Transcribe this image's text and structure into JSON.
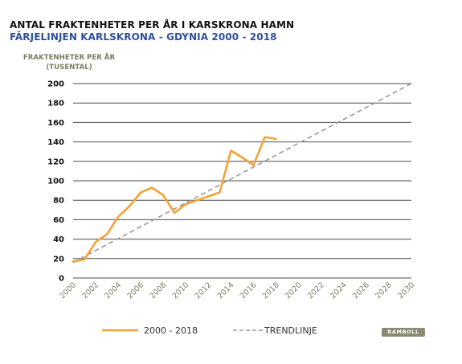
{
  "colors": {
    "series": "#f5a236",
    "trend": "#9a9a9a",
    "subtitle": "#2f4f9c",
    "axis_text": "#7d7d62",
    "grid": "#4d4d4d",
    "logo_bg": "#8a8a72"
  },
  "logo_text": "RAMBOLL",
  "chart_data": {
    "type": "line",
    "title": "ANTAL FRAKTENHETER PER ÅR I KARSKRONA HAMN",
    "subtitle": "FÄRJELINJEN KARLSKRONA - GDYNIA 2000 - 2018",
    "ylabel": [
      "FRAKTENHETER PER ÅR",
      "(TUSENTAL)"
    ],
    "xlabel": "",
    "xlim": [
      2000,
      2030
    ],
    "ylim": [
      0,
      200
    ],
    "x_ticks": [
      "2000",
      "2002",
      "2004",
      "2006",
      "2008",
      "2010",
      "2012",
      "2014",
      "2016",
      "2018",
      "2020",
      "2022",
      "2024",
      "2026",
      "2028",
      "2030"
    ],
    "y_ticks": [
      "0",
      "20",
      "40",
      "60",
      "80",
      "100",
      "120",
      "140",
      "160",
      "180",
      "200"
    ],
    "grid": "horizontal",
    "legend_position": "bottom",
    "series": [
      {
        "name": "2000 - 2018",
        "style": "solid",
        "x": [
          2000,
          2001,
          2002,
          2003,
          2004,
          2005,
          2006,
          2007,
          2008,
          2009,
          2010,
          2011,
          2012,
          2013,
          2014,
          2015,
          2016,
          2017,
          2018
        ],
        "y": [
          17,
          19,
          37,
          45,
          63,
          74,
          88,
          93,
          85,
          67,
          76,
          80,
          84,
          88,
          131,
          124,
          116,
          145,
          143
        ]
      },
      {
        "name": "TRENDLINJE",
        "style": "dashed",
        "x": [
          2000,
          2030
        ],
        "y": [
          16,
          200
        ]
      }
    ]
  }
}
